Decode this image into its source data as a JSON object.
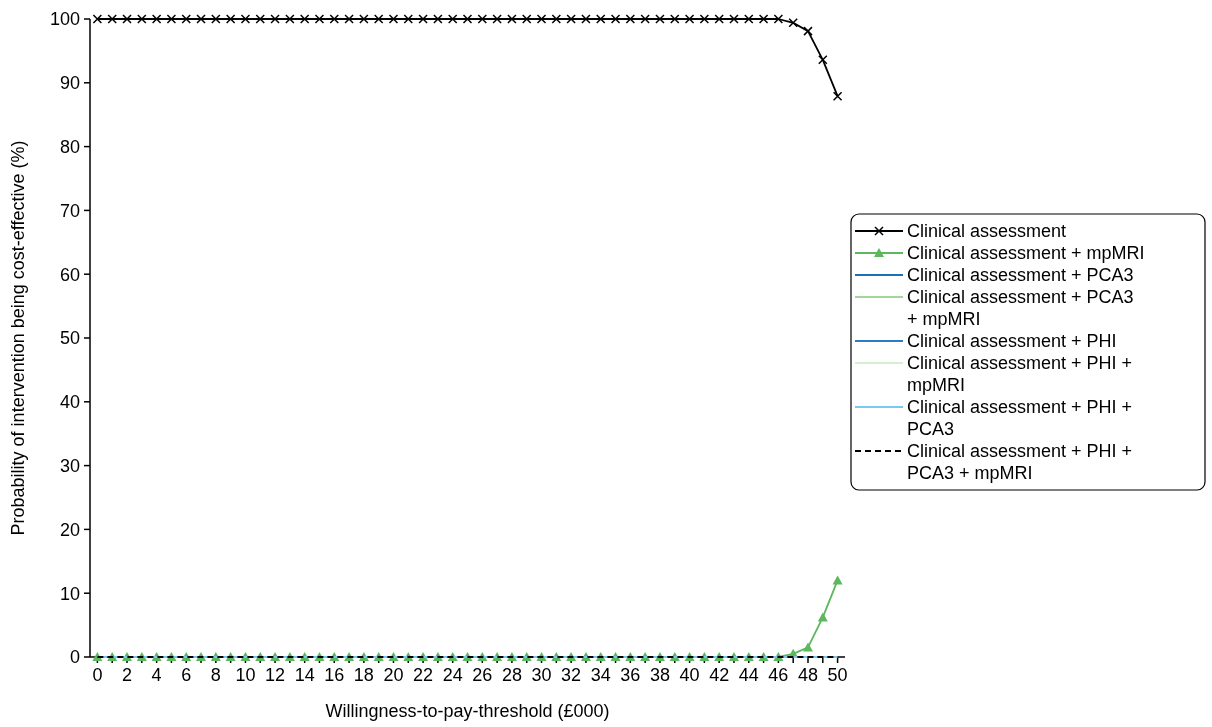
{
  "chart_data": {
    "type": "line",
    "xlabel": "Willingness-to-pay-threshold (£000)",
    "ylabel": "Probability of intervention being cost-effective (%)",
    "x": [
      0,
      1,
      2,
      3,
      4,
      5,
      6,
      7,
      8,
      9,
      10,
      11,
      12,
      13,
      14,
      15,
      16,
      17,
      18,
      19,
      20,
      21,
      22,
      23,
      24,
      25,
      26,
      27,
      28,
      29,
      30,
      31,
      32,
      33,
      34,
      35,
      36,
      37,
      38,
      39,
      40,
      41,
      42,
      43,
      44,
      45,
      46,
      47,
      48,
      49,
      50
    ],
    "xlim": [
      -0.5,
      50.5
    ],
    "xticks": [
      0,
      {
        "value": 1,
        "label": null
      },
      2,
      {
        "value": 3,
        "label": null
      },
      4,
      {
        "value": 5,
        "label": null
      },
      6,
      {
        "value": 7,
        "label": null
      },
      8,
      {
        "value": 9,
        "label": null
      },
      10,
      {
        "value": 11,
        "label": null
      },
      12,
      {
        "value": 13,
        "label": null
      },
      14,
      {
        "value": 15,
        "label": null
      },
      16,
      {
        "value": 17,
        "label": null
      },
      18,
      {
        "value": 19,
        "label": null
      },
      20,
      {
        "value": 21,
        "label": null
      },
      22,
      {
        "value": 23,
        "label": null
      },
      24,
      {
        "value": 25,
        "label": null
      },
      26,
      {
        "value": 27,
        "label": null
      },
      28,
      {
        "value": 29,
        "label": null
      },
      30,
      {
        "value": 31,
        "label": null
      },
      32,
      {
        "value": 33,
        "label": null
      },
      34,
      {
        "value": 35,
        "label": null
      },
      36,
      {
        "value": 37,
        "label": null
      },
      38,
      {
        "value": 39,
        "label": null
      },
      40,
      {
        "value": 41,
        "label": null
      },
      42,
      {
        "value": 43,
        "label": null
      },
      44,
      {
        "value": 45,
        "label": null
      },
      46,
      {
        "value": 47,
        "label": null
      },
      48,
      {
        "value": 49,
        "label": null
      },
      50
    ],
    "ylim": [
      0,
      100
    ],
    "yticks": [
      0,
      10,
      20,
      30,
      40,
      50,
      60,
      70,
      80,
      90,
      100
    ],
    "legend": "right",
    "grid": false,
    "series": [
      {
        "name": "Clinical assessment",
        "color": "#000000",
        "marker": "cross",
        "line_style": "solid",
        "values": [
          100,
          100,
          100,
          100,
          100,
          100,
          100,
          100,
          100,
          100,
          100,
          100,
          100,
          100,
          100,
          100,
          100,
          100,
          100,
          100,
          100,
          100,
          100,
          100,
          100,
          100,
          100,
          100,
          100,
          100,
          100,
          100,
          100,
          100,
          100,
          100,
          100,
          100,
          100,
          100,
          100,
          100,
          100,
          100,
          100,
          100,
          100,
          99.4,
          98.1,
          93.6,
          87.9
        ]
      },
      {
        "name": "Clinical assessment + mpMRI",
        "color": "#5cb85c",
        "marker": "triangle",
        "line_style": "solid",
        "values": [
          0,
          0,
          0,
          0,
          0,
          0,
          0,
          0,
          0,
          0,
          0,
          0,
          0,
          0,
          0,
          0,
          0,
          0,
          0,
          0,
          0,
          0,
          0,
          0,
          0,
          0,
          0,
          0,
          0,
          0,
          0,
          0,
          0,
          0,
          0,
          0,
          0,
          0,
          0,
          0,
          0,
          0,
          0,
          0,
          0,
          0,
          0,
          0.5,
          1.5,
          6.2,
          12
        ]
      },
      {
        "name": "Clinical assessment + PCA3",
        "color": "#1f6fb5",
        "marker": "none",
        "line_style": "solid",
        "values": [
          null,
          null,
          null,
          null,
          null,
          null,
          null,
          null,
          null,
          null,
          null,
          null,
          null,
          null,
          null,
          null,
          null,
          null,
          null,
          null,
          null,
          null,
          null,
          null,
          null,
          null,
          null,
          null,
          null,
          null,
          null,
          null,
          null,
          null,
          null,
          null,
          null,
          null,
          null,
          null,
          null,
          null,
          null,
          null,
          null,
          null,
          null,
          null,
          null,
          null,
          null
        ]
      },
      {
        "name": "Clinical assessment + PCA3 + mpMRI",
        "color": "#a3d69b",
        "marker": "none",
        "line_style": "solid",
        "values": [
          null,
          null,
          null,
          null,
          null,
          null,
          null,
          null,
          null,
          null,
          null,
          null,
          null,
          null,
          null,
          null,
          null,
          null,
          null,
          null,
          null,
          null,
          null,
          null,
          null,
          null,
          null,
          null,
          null,
          null,
          null,
          null,
          null,
          null,
          null,
          null,
          null,
          null,
          null,
          null,
          null,
          null,
          null,
          null,
          null,
          null,
          null,
          null,
          null,
          null,
          null
        ]
      },
      {
        "name": "Clinical assessment + PHI",
        "color": "#2b7cc4",
        "marker": "none",
        "line_style": "solid",
        "values": [
          null,
          null,
          null,
          null,
          null,
          null,
          null,
          null,
          null,
          null,
          null,
          null,
          null,
          null,
          null,
          null,
          null,
          null,
          null,
          null,
          null,
          null,
          null,
          null,
          null,
          null,
          null,
          null,
          null,
          null,
          null,
          null,
          null,
          null,
          null,
          null,
          null,
          null,
          null,
          null,
          null,
          null,
          null,
          null,
          null,
          null,
          null,
          null,
          null,
          null,
          null
        ]
      },
      {
        "name": "Clinical assessment + PHI + mpMRI",
        "color": "#d6eed1",
        "marker": "none",
        "line_style": "solid",
        "values": [
          null,
          null,
          null,
          null,
          null,
          null,
          null,
          null,
          null,
          null,
          null,
          null,
          null,
          null,
          null,
          null,
          null,
          null,
          null,
          null,
          null,
          null,
          null,
          null,
          null,
          null,
          null,
          null,
          null,
          null,
          null,
          null,
          null,
          null,
          null,
          null,
          null,
          null,
          null,
          null,
          null,
          null,
          null,
          null,
          null,
          null,
          null,
          null,
          null,
          null,
          null
        ]
      },
      {
        "name": "Clinical assessment + PHI + PCA3",
        "color": "#7cc7f0",
        "marker": "none",
        "line_style": "solid",
        "values": [
          0,
          0,
          0,
          0,
          0,
          0,
          0,
          0,
          0,
          0,
          0,
          0,
          0,
          0,
          0,
          0,
          0,
          0,
          0,
          0,
          0,
          0,
          0,
          0,
          0,
          0,
          0,
          0,
          0,
          0,
          0,
          0,
          0,
          0,
          0,
          0,
          0,
          0,
          0,
          0,
          0,
          0,
          0,
          0,
          0,
          0,
          0,
          0,
          0,
          0,
          0
        ]
      },
      {
        "name": "Clinical assessment + PHI + PCA3 + mpMRI",
        "color": "#000000",
        "marker": "none",
        "line_style": "dashed",
        "values": [
          0,
          0,
          0,
          0,
          0,
          0,
          0,
          0,
          0,
          0,
          0,
          0,
          0,
          0,
          0,
          0,
          0,
          0,
          0,
          0,
          0,
          0,
          0,
          0,
          0,
          0,
          0,
          0,
          0,
          0,
          0,
          0,
          0,
          0,
          0,
          0,
          0,
          0,
          0,
          0,
          0,
          0,
          0,
          0,
          0,
          0,
          0,
          0,
          0,
          0,
          0
        ]
      }
    ]
  }
}
